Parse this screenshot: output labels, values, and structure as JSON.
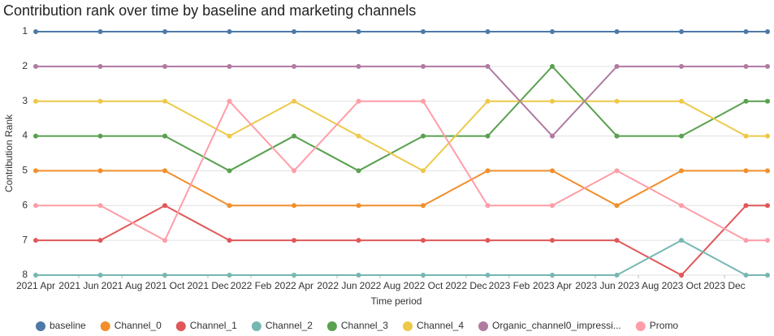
{
  "chart_data": {
    "type": "line",
    "title": "Contribution rank over time by baseline and marketing channels",
    "x_label": "Time period",
    "y_label": "Contribution Rank",
    "x": [
      "2021-04",
      "2021-07",
      "2021-10",
      "2022-01",
      "2022-04",
      "2022-07",
      "2022-10",
      "2023-01",
      "2023-04",
      "2023-07",
      "2023-10",
      "2024-01",
      "2024-02"
    ],
    "xlim": [
      "2021-04",
      "2024-02"
    ],
    "xticks": [
      {
        "value": "2021-04",
        "label": "2021 Apr"
      },
      {
        "value": "2021-06",
        "label": "2021 Jun"
      },
      {
        "value": "2021-08",
        "label": "2021 Aug"
      },
      {
        "value": "2021-10",
        "label": "2021 Oct"
      },
      {
        "value": "2021-12",
        "label": "2021 Dec"
      },
      {
        "value": "2022-02",
        "label": "2022 Feb"
      },
      {
        "value": "2022-04",
        "label": "2022 Apr"
      },
      {
        "value": "2022-06",
        "label": "2022 Jun"
      },
      {
        "value": "2022-08",
        "label": "2022 Aug"
      },
      {
        "value": "2022-10",
        "label": "2022 Oct"
      },
      {
        "value": "2022-12",
        "label": "2022 Dec"
      },
      {
        "value": "2023-02",
        "label": "2023 Feb"
      },
      {
        "value": "2023-04",
        "label": "2023 Apr"
      },
      {
        "value": "2023-06",
        "label": "2023 Jun"
      },
      {
        "value": "2023-08",
        "label": "2023 Aug"
      },
      {
        "value": "2023-10",
        "label": "2023 Oct"
      },
      {
        "value": "2023-12",
        "label": "2023 Dec"
      }
    ],
    "ylim": [
      1,
      8
    ],
    "y_inverted": true,
    "yticks": [
      1,
      2,
      3,
      4,
      5,
      6,
      7,
      8
    ],
    "grid": true,
    "series": [
      {
        "name": "baseline",
        "color": "#4e79a7",
        "values": [
          1,
          1,
          1,
          1,
          1,
          1,
          1,
          1,
          1,
          1,
          1,
          1,
          1
        ]
      },
      {
        "name": "Channel_0",
        "color": "#f28e2b",
        "values": [
          5,
          5,
          5,
          6,
          6,
          6,
          6,
          5,
          5,
          6,
          5,
          5,
          5
        ]
      },
      {
        "name": "Channel_1",
        "color": "#e15759",
        "values": [
          7,
          7,
          6,
          7,
          7,
          7,
          7,
          7,
          7,
          7,
          8,
          6,
          6
        ]
      },
      {
        "name": "Channel_2",
        "color": "#76b7b2",
        "values": [
          8,
          8,
          8,
          8,
          8,
          8,
          8,
          8,
          8,
          8,
          7,
          8,
          8
        ]
      },
      {
        "name": "Channel_3",
        "color": "#59a14f",
        "values": [
          4,
          4,
          4,
          5,
          4,
          5,
          4,
          4,
          2,
          4,
          4,
          3,
          3
        ]
      },
      {
        "name": "Channel_4",
        "color": "#edc948",
        "values": [
          3,
          3,
          3,
          4,
          3,
          4,
          5,
          3,
          3,
          3,
          3,
          4,
          4
        ]
      },
      {
        "name": "Organic_channel0_impressi...",
        "color": "#b07aa1",
        "values": [
          2,
          2,
          2,
          2,
          2,
          2,
          2,
          2,
          4,
          2,
          2,
          2,
          2
        ]
      },
      {
        "name": "Promo",
        "color": "#ff9da7",
        "values": [
          6,
          6,
          7,
          3,
          5,
          3,
          3,
          6,
          6,
          5,
          6,
          7,
          7
        ]
      }
    ]
  }
}
